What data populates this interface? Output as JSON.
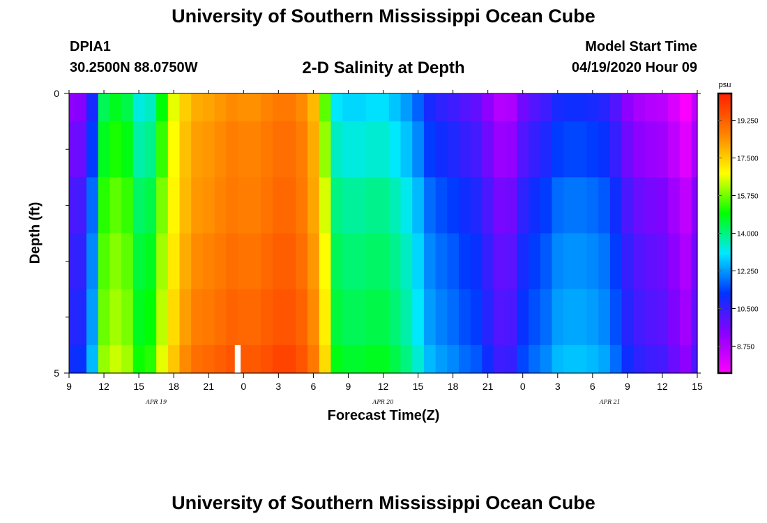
{
  "page": {
    "title": "University of Southern Mississippi Ocean Cube",
    "footer_title": "University of Southern Mississippi Ocean Cube",
    "station_id": "DPIA1",
    "station_coords": "30.2500N 88.0750W",
    "plot_title": "2-D Salinity at Depth",
    "start_label": "Model Start Time",
    "start_value": "04/19/2020 Hour 09"
  },
  "chart_data": {
    "type": "heatmap",
    "title": "2-D Salinity at Depth",
    "xlabel": "Forecast Time(Z)",
    "ylabel": "Depth (ft)",
    "x_start_hour": 9,
    "x_end_hour": 63,
    "xlim": [
      9,
      63
    ],
    "ylim": [
      0,
      5
    ],
    "x_tick_labels": [
      "9",
      "12",
      "15",
      "18",
      "21",
      "0",
      "3",
      "6",
      "9",
      "12",
      "15",
      "18",
      "21",
      "0",
      "3",
      "6",
      "9",
      "12",
      "15"
    ],
    "y_tick_labels": [
      "0",
      "5"
    ],
    "y_minor_ticks": [
      1,
      2,
      3,
      4
    ],
    "date_labels": [
      {
        "label": "APR 19",
        "hour": 16.5
      },
      {
        "label": "APR 20",
        "hour": 36
      },
      {
        "label": "APR 21",
        "hour": 55.5
      }
    ],
    "depth_bins": [
      0.0,
      0.5,
      1.5,
      2.5,
      3.5,
      4.5,
      5.0
    ],
    "times": [
      9,
      10,
      11,
      12,
      13,
      14,
      15,
      16,
      17,
      18,
      19,
      20,
      21,
      22,
      23,
      24,
      25,
      26,
      27,
      28,
      29,
      30,
      31,
      32,
      33,
      34,
      35,
      36,
      37,
      38,
      39,
      40,
      41,
      42,
      43,
      44,
      45,
      46,
      47,
      48,
      49,
      50,
      51,
      52,
      53,
      54,
      55,
      56,
      57,
      58,
      59,
      60,
      61,
      62,
      63
    ],
    "profile": [
      10.2,
      10.3,
      11.8,
      15.2,
      15.6,
      15.3,
      14.2,
      14.4,
      15.8,
      16.6,
      17.5,
      18.0,
      18.1,
      18.3,
      18.5,
      18.4,
      18.4,
      18.6,
      18.8,
      18.8,
      18.5,
      17.8,
      16.5,
      14.0,
      13.8,
      13.8,
      13.9,
      13.9,
      13.6,
      13.2,
      12.6,
      11.8,
      11.5,
      11.3,
      11.0,
      10.8,
      10.2,
      9.6,
      9.7,
      10.6,
      11.0,
      11.3,
      11.8,
      11.9,
      11.9,
      11.8,
      11.6,
      11.0,
      10.2,
      9.8,
      9.6,
      9.5,
      9.0,
      8.5,
      9.4
    ],
    "depth_offsets": [
      -0.9,
      -0.5,
      0.0,
      0.3,
      0.5,
      0.8
    ],
    "warm_offsets": [
      0.0,
      0.2,
      0.3,
      0.5,
      0.7,
      1.0
    ],
    "missing_cells": [
      {
        "time": 23.5,
        "depth_bin": 5
      }
    ],
    "colorbar": {
      "unit": "psu",
      "min": 7.5,
      "max": 20.5,
      "tick_labels": [
        "19.250",
        "17.500",
        "15.750",
        "14.000",
        "12.250",
        "10.500",
        "8.750"
      ],
      "tick_values": [
        19.25,
        17.5,
        15.75,
        14.0,
        12.25,
        10.5,
        8.75
      ],
      "colors": [
        "#ff00ff",
        "#8a00ff",
        "#0033ff",
        "#00e8ff",
        "#00ff00",
        "#ffff00",
        "#ff8000",
        "#ff2000"
      ]
    }
  }
}
